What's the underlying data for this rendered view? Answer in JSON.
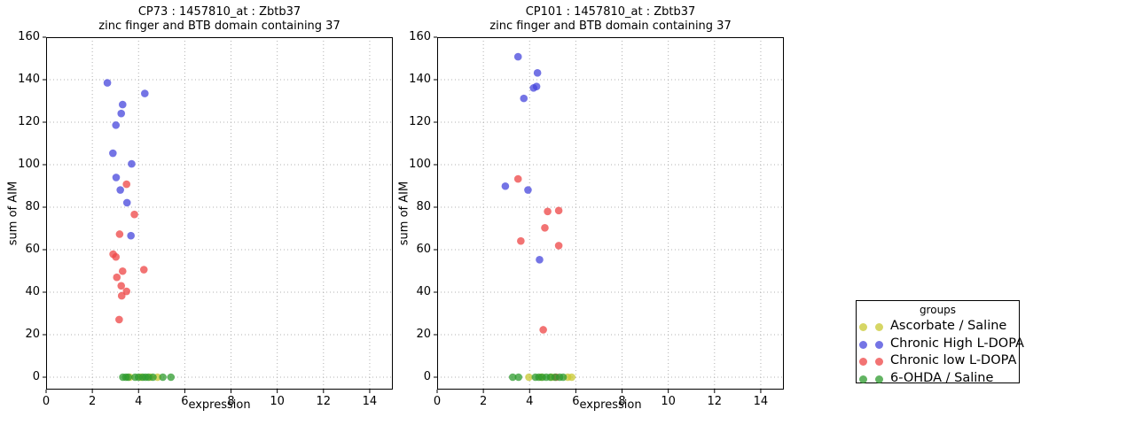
{
  "colors": {
    "yellow": "#c8c832",
    "blue": "#4646dc",
    "red": "#ee4444",
    "green": "#2e9b2e",
    "grid": "#b0b0b0",
    "axis": "#000000"
  },
  "legend": {
    "title": "groups",
    "entries": [
      {
        "label": "Ascorbate / Saline",
        "color": "yellow"
      },
      {
        "label": "Chronic High L-DOPA",
        "color": "blue"
      },
      {
        "label": "Chronic low L-DOPA",
        "color": "red"
      },
      {
        "label": "6-OHDA / Saline",
        "color": "green"
      }
    ]
  },
  "chart_data": [
    {
      "type": "scatter",
      "title": "CP73 : 1457810_at : Zbtb37",
      "subtitle": "zinc finger and BTB domain containing 37",
      "xlabel": "expression",
      "ylabel": "sum of AIM",
      "xlim": [
        0,
        15
      ],
      "ylim": [
        -5.8,
        160
      ],
      "xticks": [
        0,
        2,
        4,
        6,
        8,
        10,
        12,
        14
      ],
      "yticks": [
        0,
        20,
        40,
        60,
        80,
        100,
        120,
        140,
        160
      ],
      "grid": true,
      "legend_position": "outside-right",
      "series": [
        {
          "name": "Ascorbate / Saline",
          "color": "yellow",
          "points": [
            [
              3.62,
              0
            ],
            [
              4.1,
              0
            ],
            [
              4.5,
              0
            ],
            [
              4.82,
              0
            ]
          ]
        },
        {
          "name": "Chronic High L-DOPA",
          "color": "blue",
          "points": [
            [
              2.65,
              138.5
            ],
            [
              4.27,
              133.5
            ],
            [
              3.31,
              128.3
            ],
            [
              3.25,
              124.1
            ],
            [
              3.02,
              118.6
            ],
            [
              2.89,
              105.4
            ],
            [
              3.7,
              100.4
            ],
            [
              3.03,
              94
            ],
            [
              3.21,
              88.1
            ],
            [
              3.5,
              82.1
            ],
            [
              3.67,
              66.6
            ]
          ]
        },
        {
          "name": "Chronic low L-DOPA",
          "color": "red",
          "points": [
            [
              3.48,
              90.8
            ],
            [
              3.82,
              76.6
            ],
            [
              3.18,
              67.3
            ],
            [
              2.9,
              57.9
            ],
            [
              3.02,
              56.6
            ],
            [
              4.23,
              50.6
            ],
            [
              3.31,
              49.9
            ],
            [
              3.06,
              47
            ],
            [
              3.25,
              43
            ],
            [
              3.48,
              40.4
            ],
            [
              3.27,
              38.3
            ],
            [
              3.16,
              27.1
            ]
          ]
        },
        {
          "name": "6-OHDA / Saline",
          "color": "green",
          "points": [
            [
              3.32,
              0
            ],
            [
              3.45,
              0
            ],
            [
              3.55,
              0
            ],
            [
              3.85,
              0
            ],
            [
              4.0,
              0
            ],
            [
              4.18,
              0
            ],
            [
              4.3,
              0
            ],
            [
              4.42,
              0
            ],
            [
              4.62,
              0
            ],
            [
              5.05,
              0
            ],
            [
              5.4,
              0
            ]
          ]
        }
      ]
    },
    {
      "type": "scatter",
      "title": "CP101 : 1457810_at : Zbtb37",
      "subtitle": "zinc finger and BTB domain containing 37",
      "xlabel": "expression",
      "ylabel": "sum of AIM",
      "xlim": [
        0,
        15
      ],
      "ylim": [
        -5.8,
        160
      ],
      "xticks": [
        0,
        2,
        4,
        6,
        8,
        10,
        12,
        14
      ],
      "yticks": [
        0,
        20,
        40,
        60,
        80,
        100,
        120,
        140,
        160
      ],
      "grid": true,
      "legend_position": "outside-right",
      "series": [
        {
          "name": "Ascorbate / Saline",
          "color": "yellow",
          "points": [
            [
              3.97,
              0
            ],
            [
              4.5,
              0
            ],
            [
              4.95,
              0
            ],
            [
              5.65,
              0
            ],
            [
              5.82,
              0
            ]
          ]
        },
        {
          "name": "Chronic High L-DOPA",
          "color": "blue",
          "points": [
            [
              3.5,
              150.8
            ],
            [
              4.34,
              143.2
            ],
            [
              4.17,
              136.1
            ],
            [
              4.3,
              136.8
            ],
            [
              3.75,
              131.2
            ],
            [
              2.95,
              89.9
            ],
            [
              3.93,
              88.1
            ],
            [
              4.43,
              55.3
            ]
          ]
        },
        {
          "name": "Chronic low L-DOPA",
          "color": "red",
          "points": [
            [
              3.5,
              93.3
            ],
            [
              4.78,
              78
            ],
            [
              5.26,
              78.4
            ],
            [
              4.66,
              70.3
            ],
            [
              3.62,
              64.1
            ],
            [
              5.26,
              61.9
            ],
            [
              4.59,
              22.3
            ],
            [
              5.15,
              0
            ]
          ]
        },
        {
          "name": "6-OHDA / Saline",
          "color": "green",
          "points": [
            [
              3.27,
              0
            ],
            [
              3.52,
              0
            ],
            [
              4.25,
              0
            ],
            [
              4.4,
              0
            ],
            [
              4.55,
              0
            ],
            [
              4.72,
              0
            ],
            [
              4.9,
              0
            ],
            [
              5.1,
              0
            ],
            [
              5.3,
              0
            ],
            [
              5.45,
              0
            ]
          ]
        }
      ]
    }
  ]
}
